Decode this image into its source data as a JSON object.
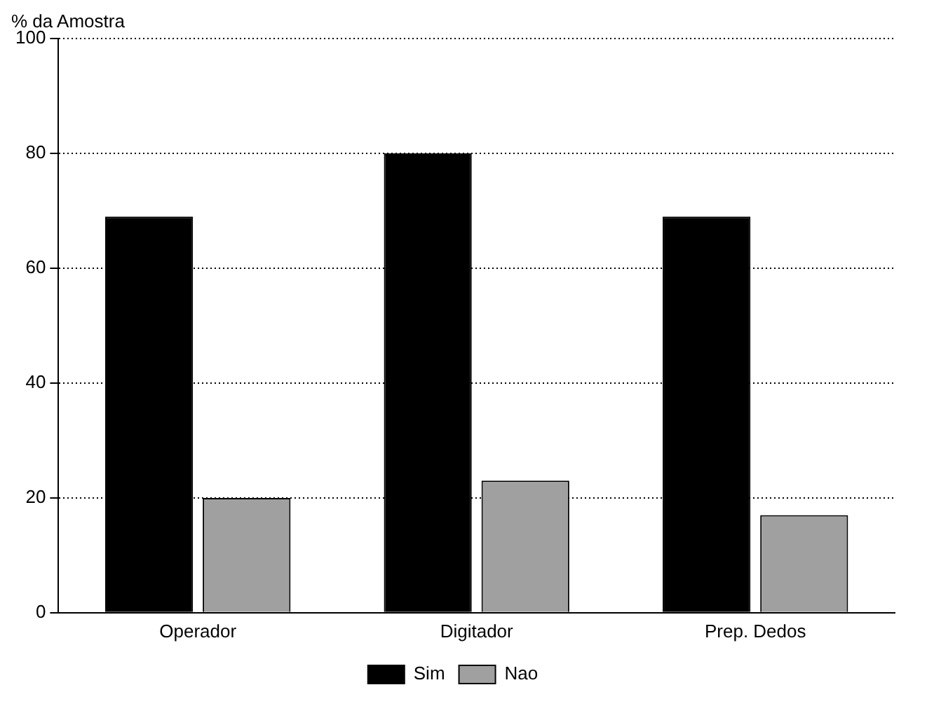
{
  "chart_data": {
    "type": "bar",
    "ylabel": "% da Amostra",
    "categories": [
      "Operador",
      "Digitador",
      "Prep. Dedos"
    ],
    "series": [
      {
        "name": "Sim",
        "color": "#000000",
        "values": [
          69,
          80,
          69
        ]
      },
      {
        "name": "Nao",
        "color": "#a0a0a0",
        "values": [
          20,
          23,
          17
        ]
      }
    ],
    "ylim": [
      0,
      100
    ],
    "yticks": [
      0,
      20,
      40,
      60,
      80,
      100
    ],
    "grid": "y",
    "legend": "bottom"
  }
}
